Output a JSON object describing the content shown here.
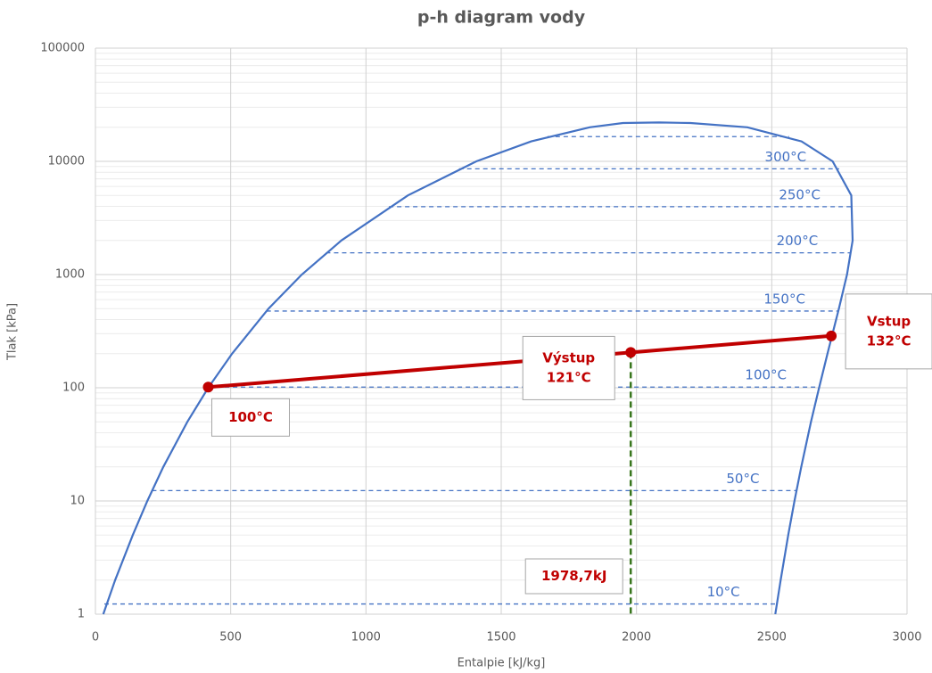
{
  "chart_data": {
    "type": "line",
    "title": "p-h diagram vody",
    "x_label": "Entalpie  [kJ/kg]",
    "y_label": "Tlak [kPa]",
    "xlim": [
      0,
      3000
    ],
    "xticks": [
      0,
      500,
      1000,
      1500,
      2000,
      2500,
      3000
    ],
    "ylim": [
      1,
      100000
    ],
    "yticks": [
      1,
      10,
      100,
      1000,
      10000,
      100000
    ],
    "y_scale": "log",
    "grid": true,
    "minor_grid": true,
    "series": [
      {
        "color": "#4472c4",
        "x": [
          29,
          73,
          138,
          192,
          251,
          340,
          417,
          505,
          640,
          763,
          909,
          1155,
          1408,
          1611,
          1827,
          1950,
          2084,
          2200,
          2410,
          2610,
          2725,
          2794,
          2799,
          2778,
          2748,
          2706,
          2675,
          2645,
          2609,
          2584,
          2561,
          2533,
          2513
        ],
        "values": [
          1,
          2,
          5,
          10,
          20,
          50,
          100,
          200,
          500,
          1000,
          2000,
          5000,
          10000,
          15000,
          20000,
          21800,
          22064,
          21800,
          20000,
          15000,
          10000,
          5000,
          2000,
          1000,
          500,
          200,
          100,
          50,
          20,
          10,
          5,
          2,
          1
        ]
      },
      {
        "color": "#c00000",
        "x": [
          417,
          1978.7,
          2720
        ],
        "values": [
          101.3,
          205,
          287
        ],
        "point_labels": [
          [
            "100°C"
          ],
          [
            "Výstup",
            "121°C"
          ],
          [
            "Vstup",
            "132°C"
          ]
        ]
      }
    ],
    "isotherms": [
      {
        "label": "10°C",
        "pressure": 1.23,
        "x": [
          33,
          2519
        ]
      },
      {
        "label": "50°C",
        "pressure": 12.35,
        "x": [
          209,
          2591
        ]
      },
      {
        "label": "100°C",
        "pressure": 101.4,
        "x": [
          419,
          2676
        ]
      },
      {
        "label": "150°C",
        "pressure": 476,
        "x": [
          632,
          2745
        ]
      },
      {
        "label": "200°C",
        "pressure": 1555,
        "x": [
          852,
          2792
        ]
      },
      {
        "label": "250°C",
        "pressure": 3976,
        "x": [
          1085,
          2801
        ]
      },
      {
        "label": "300°C",
        "pressure": 8588,
        "x": [
          1344,
          2749
        ]
      },
      {
        "pressure": 16530,
        "x": [
          1671,
          2564
        ]
      }
    ],
    "isotherm_color": "#4472c4",
    "marker_line": {
      "x": 1978.7,
      "label": "1978,7kJ",
      "color": "#38761d"
    }
  }
}
